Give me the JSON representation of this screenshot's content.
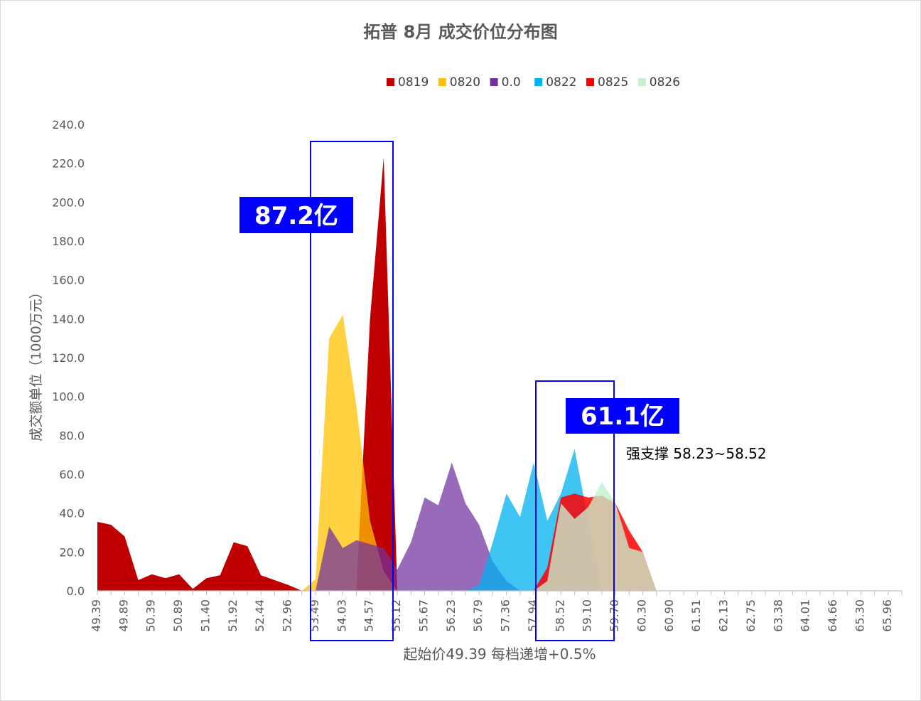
{
  "chart_data": {
    "type": "area",
    "title": "拓普 8月 成交价位分布图",
    "xlabel": "起始价49.39 每档递增+0.5%",
    "ylabel": "成交额单位（1000万元）",
    "ylim": [
      0,
      240
    ],
    "yticks": [
      "0.0",
      "20.0",
      "40.0",
      "60.0",
      "80.0",
      "100.0",
      "120.0",
      "140.0",
      "160.0",
      "180.0",
      "200.0",
      "220.0",
      "240.0"
    ],
    "x_tick_labels": [
      "49.39",
      "49.89",
      "50.39",
      "50.89",
      "51.40",
      "51.92",
      "52.44",
      "52.96",
      "53.49",
      "54.03",
      "54.57",
      "55.12",
      "55.67",
      "56.23",
      "56.79",
      "57.36",
      "57.94",
      "58.52",
      "59.10",
      "59.70",
      "60.30",
      "60.90",
      "61.51",
      "62.13",
      "62.75",
      "63.38",
      "64.01",
      "64.66",
      "65.30",
      "65.96"
    ],
    "legend_position": "top",
    "grid": false,
    "series": [
      {
        "name": "0819",
        "color": "#c00000",
        "opacity": 1,
        "points": [
          [
            0,
            35.5
          ],
          [
            1,
            34
          ],
          [
            2,
            28
          ],
          [
            3,
            5.5
          ],
          [
            4,
            8.5
          ],
          [
            5,
            6.5
          ],
          [
            6,
            8.5
          ],
          [
            7,
            1
          ],
          [
            8,
            6.5
          ],
          [
            9,
            8
          ],
          [
            10,
            25
          ],
          [
            11,
            23
          ],
          [
            12,
            8
          ],
          [
            13,
            5.5
          ],
          [
            14,
            3
          ],
          [
            15,
            0
          ],
          [
            16,
            0
          ],
          [
            17,
            0
          ],
          [
            18,
            0
          ],
          [
            19,
            0
          ],
          [
            20,
            140
          ],
          [
            21,
            223
          ],
          [
            22,
            0
          ]
        ]
      },
      {
        "name": "0820",
        "color": "#ffc000",
        "opacity": 0.75,
        "points": [
          [
            15,
            0
          ],
          [
            16,
            6
          ],
          [
            17,
            130
          ],
          [
            18,
            142
          ],
          [
            19,
            95
          ],
          [
            20,
            36
          ],
          [
            21,
            10
          ],
          [
            22,
            0
          ]
        ]
      },
      {
        "name": "0.0",
        "color": "#7030a0",
        "opacity": 0.72,
        "points": [
          [
            15,
            0
          ],
          [
            16,
            0
          ],
          [
            17,
            33
          ],
          [
            18,
            22
          ],
          [
            19,
            26
          ],
          [
            20,
            24
          ],
          [
            21,
            22
          ],
          [
            22,
            11
          ],
          [
            23,
            25
          ],
          [
            24,
            48
          ],
          [
            25,
            44
          ],
          [
            26,
            66
          ],
          [
            27,
            45
          ],
          [
            28,
            34
          ],
          [
            29,
            15
          ],
          [
            30,
            5
          ],
          [
            31,
            0
          ]
        ]
      },
      {
        "name": "0822",
        "color": "#00b0f0",
        "opacity": 0.75,
        "points": [
          [
            26,
            0
          ],
          [
            27,
            0
          ],
          [
            28,
            3
          ],
          [
            29,
            25
          ],
          [
            30,
            50
          ],
          [
            31,
            38
          ],
          [
            32,
            66
          ],
          [
            33,
            36
          ],
          [
            34,
            50
          ],
          [
            35,
            73
          ],
          [
            36,
            36
          ],
          [
            37,
            0
          ]
        ]
      },
      {
        "name": "0825",
        "color": "#ff0000",
        "opacity": 0.85,
        "points": [
          [
            31,
            0
          ],
          [
            32,
            0
          ],
          [
            33,
            12
          ],
          [
            34,
            48
          ],
          [
            35,
            50
          ],
          [
            36,
            48
          ],
          [
            37,
            49
          ],
          [
            38,
            45
          ],
          [
            39,
            31
          ],
          [
            40,
            20
          ],
          [
            41,
            0
          ]
        ]
      },
      {
        "name": "0826",
        "color": "#c6efce",
        "opacity": 0.78,
        "points": [
          [
            32,
            0
          ],
          [
            33,
            5
          ],
          [
            34,
            45
          ],
          [
            35,
            37
          ],
          [
            36,
            43
          ],
          [
            37,
            56
          ],
          [
            38,
            45
          ],
          [
            39,
            22
          ],
          [
            40,
            20
          ],
          [
            41,
            0
          ]
        ]
      }
    ],
    "annotations": {
      "box1_label": "87.2亿",
      "box2_label": "61.1亿",
      "support_text": "强支撑 58.23~58.52"
    }
  },
  "colors": {
    "box_blue": "#0000ff",
    "axis": "#bfbfbf"
  }
}
